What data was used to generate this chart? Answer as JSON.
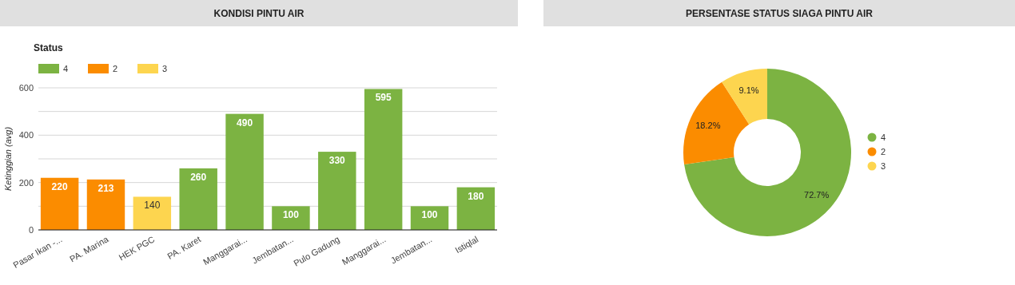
{
  "chart_data": [
    {
      "type": "bar",
      "title": "KONDISI PINTU AIR",
      "ylabel": "Ketinggian (avg)",
      "legend_title": "Status",
      "legend": "top left",
      "data_labels": true,
      "grid": true,
      "categories": [
        "Pasar Ikan -...",
        "PA. Marina",
        "HEK PGC",
        "PA. Karet",
        "Manggarai...",
        "Jembatan...",
        "Pulo Gadung",
        "Manggarai...",
        "Jembatan...",
        "Istiqlal"
      ],
      "series": [
        {
          "name": "4",
          "color": "#7cb342",
          "values": [
            null,
            null,
            null,
            260,
            490,
            100,
            330,
            595,
            100,
            180
          ]
        },
        {
          "name": "2",
          "color": "#fb8c00",
          "values": [
            220,
            213,
            null,
            null,
            null,
            null,
            null,
            null,
            null,
            null
          ]
        },
        {
          "name": "3",
          "color": "#fdd54f",
          "values": [
            null,
            null,
            140,
            null,
            null,
            null,
            null,
            null,
            null,
            null
          ]
        }
      ],
      "ylim": [
        0,
        600
      ],
      "yticks": [
        0,
        {
          "value": 100,
          "label": null
        },
        200,
        {
          "value": 300,
          "label": null
        },
        400,
        {
          "value": 500,
          "label": null
        },
        600
      ]
    },
    {
      "type": "donut",
      "title": "PERSENTASE STATUS SIAGA PINTU AIR",
      "legend": "right",
      "categories": [
        "4",
        "2",
        "3"
      ],
      "values": [
        72.7,
        18.2,
        9.1
      ],
      "value_labels": [
        "72.7%",
        "18.2%",
        "9.1%"
      ],
      "colors": [
        "#7cb342",
        "#fb8c00",
        "#fdd54f"
      ]
    }
  ]
}
